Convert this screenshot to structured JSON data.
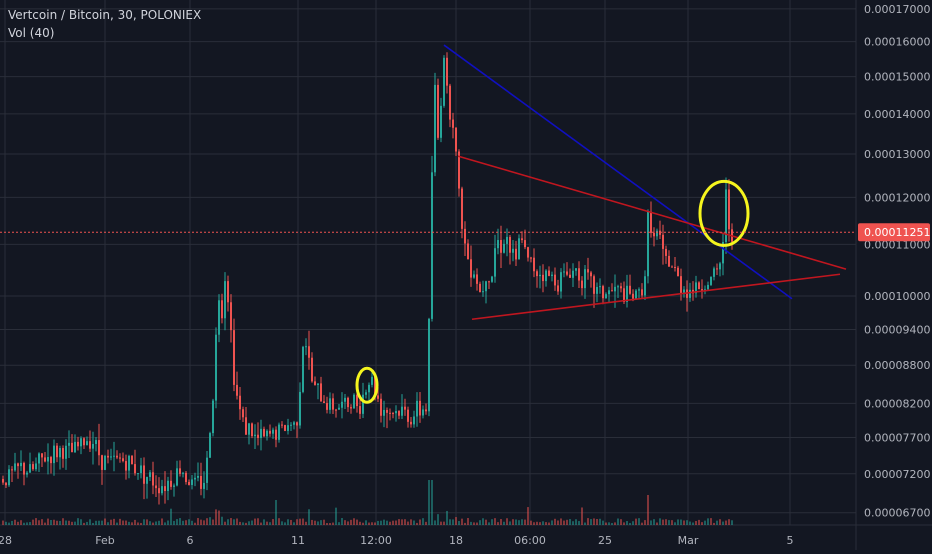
{
  "header": {
    "symbol_line": "Vertcoin / Bitcoin, 30, POLONIEX",
    "indicator": "Vol (40)"
  },
  "colors": {
    "background": "#131722",
    "grid": "#2a2e39",
    "up": "#26a69a",
    "down": "#ef5350",
    "price_line": "#ef5350",
    "trend_blue": "#1010c0",
    "trend_red": "#c0161f",
    "highlight": "#f5f51e",
    "axis_text": "#b2b5be"
  },
  "chart_data": {
    "type": "candlestick",
    "title": "Vertcoin / Bitcoin, 30, POLONIEX",
    "y_scale": "log",
    "ylim": [
      6.55e-05,
      0.0001728
    ],
    "y_tick_labels": [
      "0.00017000",
      "0.00016000",
      "0.00015000",
      "0.00014000",
      "0.00013000",
      "0.00012000",
      "0.00011000",
      "0.00010000",
      "0.00009400",
      "0.00008800",
      "0.00008200",
      "0.00007700",
      "0.00007200",
      "0.00006700"
    ],
    "x_tick_labels": [
      "28",
      "Feb",
      "6",
      "11",
      "12:00",
      "18",
      "06:00",
      "25",
      "Mar",
      "5"
    ],
    "last_price": {
      "label": "0.00011251",
      "value": 0.00011251
    },
    "price_path": [
      [
        0,
        7.12e-05
      ],
      [
        10,
        7.18e-05
      ],
      [
        20,
        7.28e-05
      ],
      [
        30,
        7.22e-05
      ],
      [
        40,
        7.38e-05
      ],
      [
        50,
        7.45e-05
      ],
      [
        60,
        7.52e-05
      ],
      [
        70,
        7.48e-05
      ],
      [
        80,
        7.6e-05
      ],
      [
        90,
        7.72e-05
      ],
      [
        100,
        7.42e-05
      ],
      [
        110,
        7.35e-05
      ],
      [
        120,
        7.4e-05
      ],
      [
        130,
        7.32e-05
      ],
      [
        140,
        7.25e-05
      ],
      [
        150,
        7.12e-05
      ],
      [
        160,
        7.05e-05
      ],
      [
        170,
        7.12e-05
      ],
      [
        180,
        7.28e-05
      ],
      [
        190,
        7.06e-05
      ],
      [
        200,
        7.08e-05
      ],
      [
        205,
        7.18e-05
      ],
      [
        210,
        8e-05
      ],
      [
        214,
        8.8e-05
      ],
      [
        217,
        0.000102
      ],
      [
        220,
        9.6e-05
      ],
      [
        224,
        0.000104
      ],
      [
        228,
        9.9e-05
      ],
      [
        232,
        8.8e-05
      ],
      [
        236,
        8.3e-05
      ],
      [
        240,
        8e-05
      ],
      [
        245,
        7.85e-05
      ],
      [
        250,
        7.8e-05
      ],
      [
        255,
        7.65e-05
      ],
      [
        260,
        7.7e-05
      ],
      [
        265,
        7.68e-05
      ],
      [
        270,
        7.75e-05
      ],
      [
        280,
        7.8e-05
      ],
      [
        290,
        7.9e-05
      ],
      [
        295,
        7.85e-05
      ],
      [
        300,
        8.7e-05
      ],
      [
        303,
        9.4e-05
      ],
      [
        306,
        9.05e-05
      ],
      [
        310,
        8.58e-05
      ],
      [
        315,
        8.4e-05
      ],
      [
        320,
        8.3e-05
      ],
      [
        325,
        8.22e-05
      ],
      [
        330,
        8.18e-05
      ],
      [
        340,
        8.15e-05
      ],
      [
        350,
        8.2e-05
      ],
      [
        360,
        8.25e-05
      ],
      [
        365,
        8.45e-05
      ],
      [
        370,
        8.6e-05
      ],
      [
        375,
        8.35e-05
      ],
      [
        380,
        8.15e-05
      ],
      [
        390,
        8.08e-05
      ],
      [
        400,
        8.08e-05
      ],
      [
        410,
        8e-05
      ],
      [
        420,
        8.1e-05
      ],
      [
        425,
        8.15e-05
      ],
      [
        428,
        9.5e-05
      ],
      [
        431,
        0.000126
      ],
      [
        434,
        0.000146
      ],
      [
        438,
        0.00013
      ],
      [
        441,
        0.000152
      ],
      [
        444,
        0.000159
      ],
      [
        447,
        0.00014
      ],
      [
        451,
        0.000142
      ],
      [
        455,
        0.00013
      ],
      [
        458,
        0.00012
      ],
      [
        461,
        0.000115
      ],
      [
        465,
        0.000108
      ],
      [
        470,
        0.000106
      ],
      [
        475,
        0.000104
      ],
      [
        480,
        0.0001
      ],
      [
        485,
        0.000105
      ],
      [
        490,
        0.000103
      ],
      [
        495,
        0.000111
      ],
      [
        500,
        0.00011
      ],
      [
        505,
        0.000112
      ],
      [
        510,
        0.000108
      ],
      [
        515,
        0.000106
      ],
      [
        520,
        0.000113
      ],
      [
        525,
        0.000107
      ],
      [
        535,
        0.000105
      ],
      [
        545,
        0.000104
      ],
      [
        555,
        0.000103
      ],
      [
        565,
        0.000104
      ],
      [
        575,
        0.000105
      ],
      [
        585,
        0.000103
      ],
      [
        595,
        0.000101
      ],
      [
        605,
        0.0001005
      ],
      [
        615,
        0.000101
      ],
      [
        625,
        0.0001
      ],
      [
        635,
        9.98e-05
      ],
      [
        640,
        0.000101
      ],
      [
        645,
        0.000105
      ],
      [
        648,
        0.00012
      ],
      [
        652,
        0.00011
      ],
      [
        657,
        0.000113
      ],
      [
        662,
        0.000107
      ],
      [
        670,
        0.000106
      ],
      [
        680,
        0.000102
      ],
      [
        690,
        0.000101
      ],
      [
        700,
        0.000102
      ],
      [
        710,
        0.000103
      ],
      [
        718,
        0.0001045
      ],
      [
        722,
        0.000111
      ],
      [
        725,
        0.00012
      ],
      [
        728,
        0.000114
      ],
      [
        732,
        0.0001125
      ]
    ],
    "trendlines": [
      {
        "color": "blue",
        "from": [
          444,
          0.000159
        ],
        "to": [
          792,
          9.95e-05
        ]
      },
      {
        "color": "red",
        "from": [
          458,
          0.0001295
        ],
        "to": [
          846,
          0.0001051
        ]
      },
      {
        "color": "red",
        "from": [
          472,
          9.58e-05
        ],
        "to": [
          840,
          0.0001041
        ]
      }
    ],
    "highlight_ellipses": [
      {
        "cx": 367,
        "cy_value": 8.48e-05,
        "rx": 10,
        "ry": 17
      },
      {
        "cx": 724,
        "cy_value": 0.0001165,
        "rx": 24,
        "ry": 32
      }
    ]
  }
}
